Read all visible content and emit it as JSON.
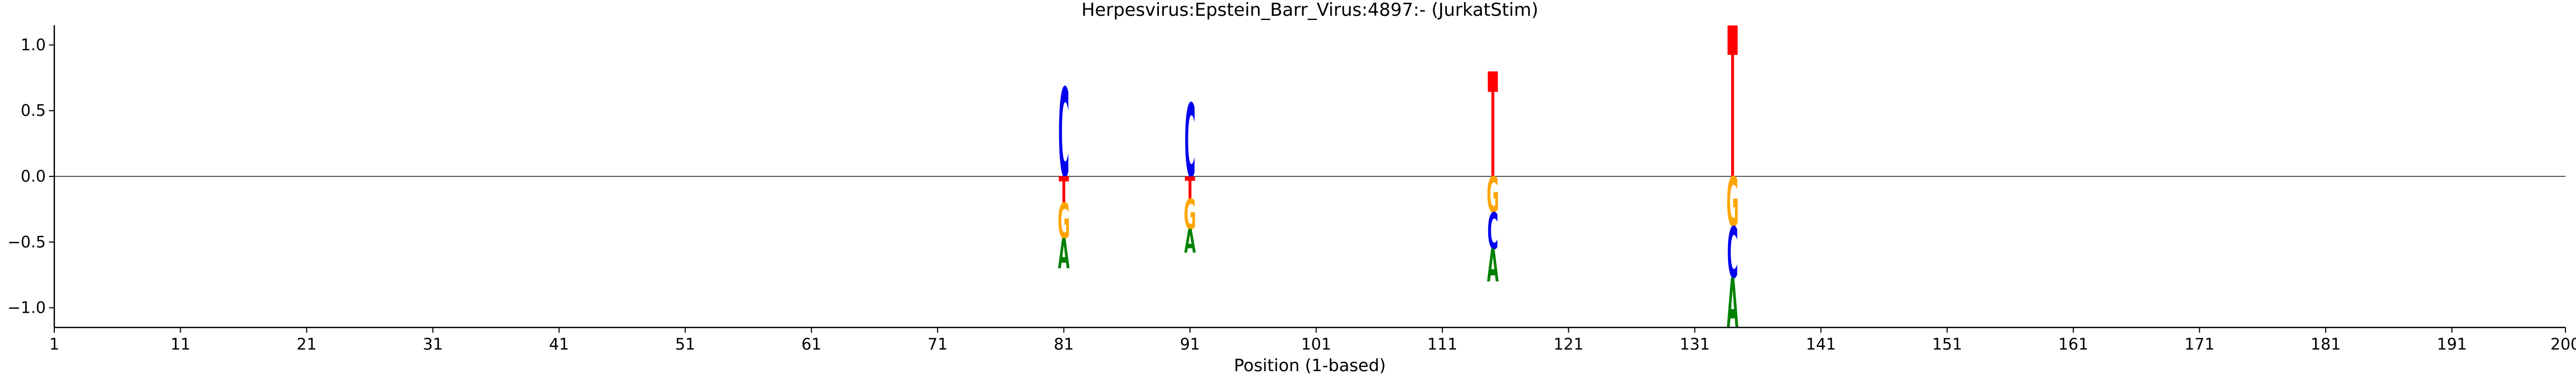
{
  "chart_data": {
    "type": "sequence-logo",
    "title": "Herpesvirus:Epstein_Barr_Virus:4897:-  (JurkatStim)",
    "xlabel": "Position (1-based)",
    "ylabel": "",
    "xlim": [
      1,
      200
    ],
    "ylim": [
      -1.15,
      1.15
    ],
    "x_ticks": [
      1,
      11,
      21,
      31,
      41,
      51,
      61,
      71,
      81,
      91,
      101,
      111,
      121,
      131,
      141,
      151,
      161,
      171,
      181,
      191,
      200
    ],
    "y_ticks": [
      -1.0,
      -0.5,
      0.0,
      0.5,
      1.0
    ],
    "y_tick_labels": [
      "−1.0",
      "−0.5",
      "0.0",
      "0.5",
      "1.0"
    ],
    "zero_line": true,
    "colors": {
      "A": "#008000",
      "C": "#0000ee",
      "G": "#ffa500",
      "T": "#ff0000"
    },
    "columns": [
      {
        "position": 81,
        "letters": [
          {
            "base": "C",
            "y0": 0.0,
            "y1": 0.68
          },
          {
            "base": "T",
            "y0": -0.2,
            "y1": 0.0
          },
          {
            "base": "G",
            "y0": -0.47,
            "y1": -0.2
          },
          {
            "base": "A",
            "y0": -0.7,
            "y1": -0.47
          }
        ]
      },
      {
        "position": 91,
        "letters": [
          {
            "base": "C",
            "y0": 0.0,
            "y1": 0.56
          },
          {
            "base": "T",
            "y0": -0.17,
            "y1": 0.0
          },
          {
            "base": "G",
            "y0": -0.4,
            "y1": -0.17
          },
          {
            "base": "A",
            "y0": -0.58,
            "y1": -0.4
          }
        ]
      },
      {
        "position": 115,
        "letters": [
          {
            "base": "T",
            "y0": 0.0,
            "y1": 0.8
          },
          {
            "base": "G",
            "y0": -0.27,
            "y1": 0.0
          },
          {
            "base": "C",
            "y0": -0.55,
            "y1": -0.27
          },
          {
            "base": "A",
            "y0": -0.8,
            "y1": -0.55
          }
        ]
      },
      {
        "position": 134,
        "letters": [
          {
            "base": "T",
            "y0": 0.0,
            "y1": 1.15
          },
          {
            "base": "G",
            "y0": -0.38,
            "y1": 0.0
          },
          {
            "base": "C",
            "y0": -0.77,
            "y1": -0.38
          },
          {
            "base": "A",
            "y0": -1.15,
            "y1": -0.77
          }
        ]
      }
    ]
  }
}
